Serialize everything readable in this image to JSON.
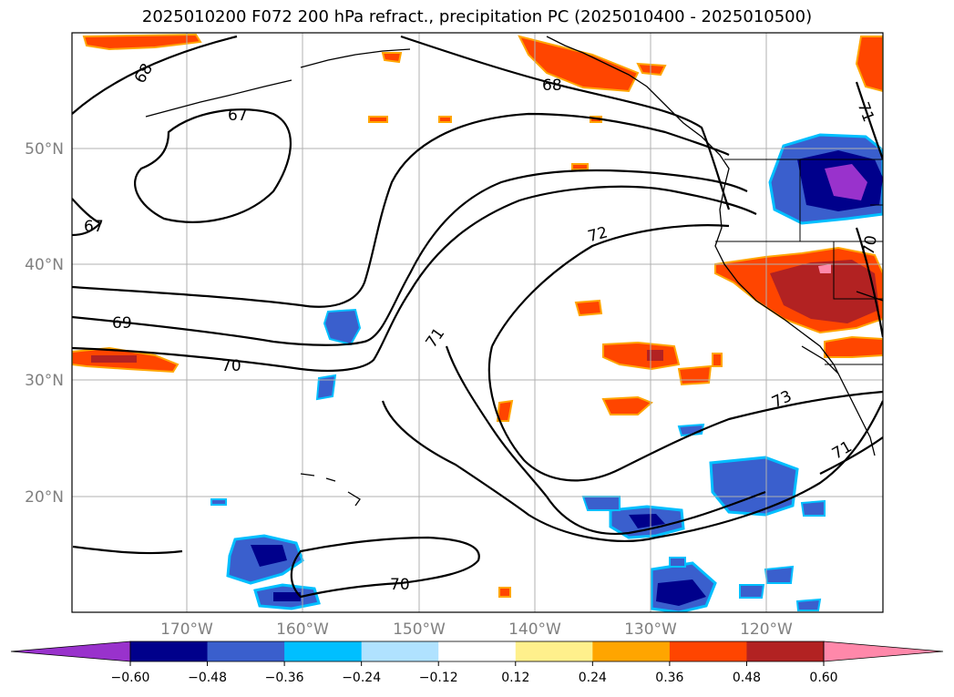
{
  "title": "2025010200 F072 200 hPa refract., precipitation PC (2025010400 - 2025010500)",
  "map": {
    "lat_labels": [
      "50°N",
      "40°N",
      "30°N",
      "20°N"
    ],
    "lon_labels": [
      "170°W",
      "160°W",
      "150°W",
      "140°W",
      "130°W",
      "120°W"
    ],
    "contour_labels": [
      "68",
      "67",
      "67",
      "69",
      "70",
      "68",
      "72",
      "71",
      "73",
      "71",
      "71",
      "70",
      "70"
    ]
  },
  "colorbar": {
    "ticks": [
      "−0.60",
      "−0.48",
      "−0.36",
      "−0.24",
      "−0.12",
      "0.12",
      "0.24",
      "0.36",
      "0.48",
      "0.60"
    ],
    "colors": [
      "#9932cc",
      "#00008b",
      "#3a5fcd",
      "#00bfff",
      "#b0e2ff",
      "#ffffff",
      "#fff08c",
      "#ffa500",
      "#ff4500",
      "#b22222",
      "#ff88aa"
    ]
  }
}
